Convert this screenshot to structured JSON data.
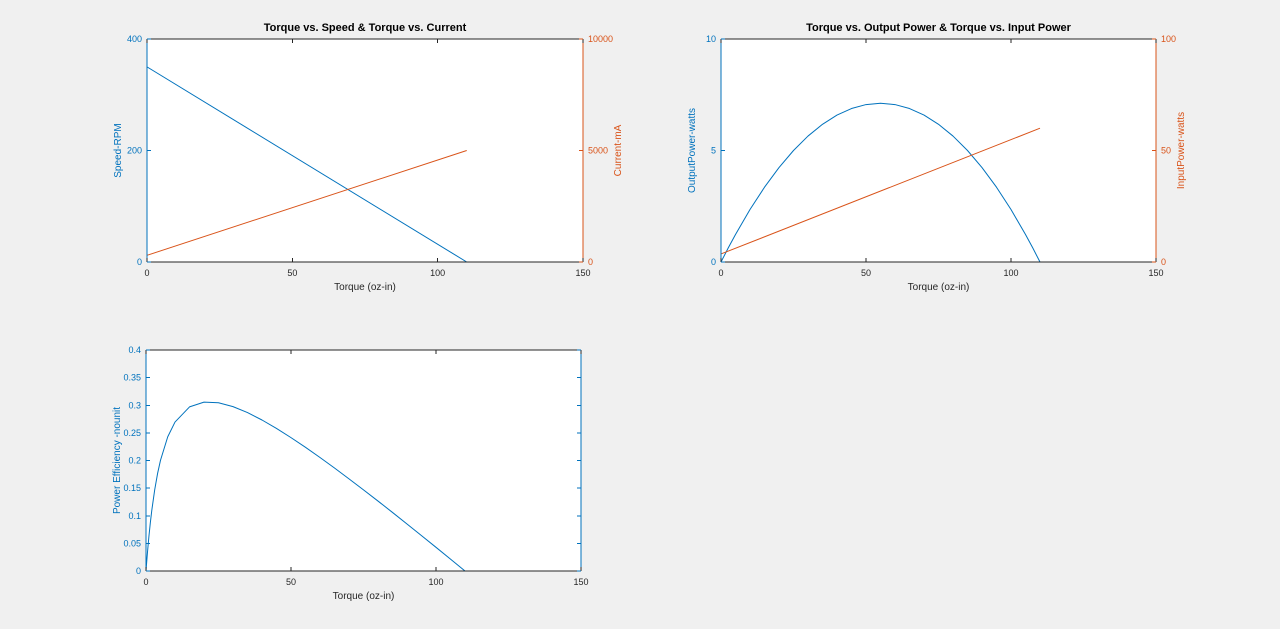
{
  "figure": {
    "background": "#F0F0F0",
    "plot_background": "#FFFFFF",
    "axis_color": "#262626",
    "title_color": "#000000",
    "palette": {
      "blue": "#0072BD",
      "orange": "#D95319"
    }
  },
  "chart_data": [
    {
      "type": "line",
      "title": "Torque vs. Speed & Torque vs. Current",
      "xlabel": "Torque (oz-in)",
      "xlim": [
        0,
        150
      ],
      "x_ticks": [
        0,
        50,
        100,
        150
      ],
      "grid": false,
      "legend": null,
      "left_axis": {
        "label": "Speed-RPM",
        "color": "#0072BD",
        "lim": [
          0,
          400
        ],
        "ticks": [
          0,
          200,
          400
        ],
        "show_labels": true
      },
      "right_axis": {
        "label": "Current-mA",
        "color": "#D95319",
        "lim": [
          0,
          10000
        ],
        "ticks": [
          0,
          5000,
          10000
        ],
        "show_labels": true
      },
      "series": [
        {
          "name": "speed-vs-torque",
          "axis": "left",
          "color": "#0072BD",
          "x": [
            0,
            110
          ],
          "y": [
            350,
            0
          ]
        },
        {
          "name": "current-vs-torque",
          "axis": "right",
          "color": "#D95319",
          "x": [
            0,
            110
          ],
          "y": [
            300,
            5000
          ]
        }
      ]
    },
    {
      "type": "line",
      "title": "Torque vs. Output Power & Torque vs. Input Power",
      "xlabel": "Torque (oz-in)",
      "xlim": [
        0,
        150
      ],
      "x_ticks": [
        0,
        50,
        100,
        150
      ],
      "grid": false,
      "legend": null,
      "left_axis": {
        "label": "OutputPower-watts",
        "color": "#0072BD",
        "lim": [
          0,
          10
        ],
        "ticks": [
          0,
          5,
          10
        ],
        "show_labels": true
      },
      "right_axis": {
        "label": "InputPower-watts",
        "color": "#D95319",
        "lim": [
          0,
          100
        ],
        "ticks": [
          0,
          50,
          100
        ],
        "show_labels": true
      },
      "series": [
        {
          "name": "output-power-vs-torque",
          "axis": "left",
          "color": "#0072BD",
          "x": [
            0,
            2.5,
            5,
            10,
            15,
            20,
            25,
            30,
            35,
            40,
            45,
            50,
            55,
            60,
            65,
            70,
            75,
            80,
            85,
            90,
            95,
            100,
            105,
            107.5,
            110
          ],
          "y": [
            0,
            0.632,
            1.235,
            2.353,
            3.353,
            4.235,
            5.0,
            5.647,
            6.176,
            6.588,
            6.882,
            7.059,
            7.118,
            7.059,
            6.882,
            6.588,
            6.176,
            5.647,
            5.0,
            4.235,
            3.353,
            2.353,
            1.235,
            0.632,
            0
          ]
        },
        {
          "name": "input-power-vs-torque",
          "axis": "right",
          "color": "#D95319",
          "x": [
            0,
            110
          ],
          "y": [
            3.6,
            60
          ]
        }
      ]
    },
    {
      "type": "line",
      "title": "",
      "xlabel": "Torque (oz-in)",
      "xlim": [
        0,
        150
      ],
      "x_ticks": [
        0,
        50,
        100,
        150
      ],
      "grid": false,
      "legend": null,
      "left_axis": {
        "label": "Power Efficiency -nounit",
        "color": "#0072BD",
        "lim": [
          0,
          0.4
        ],
        "ticks": [
          0,
          0.05,
          0.1,
          0.15,
          0.2,
          0.25,
          0.3,
          0.35,
          0.4
        ],
        "show_labels": true
      },
      "right_axis": {
        "label": "",
        "color": "#0072BD",
        "lim": [
          0,
          0.4
        ],
        "ticks": [
          0,
          0.05,
          0.1,
          0.15,
          0.2,
          0.25,
          0.3,
          0.35,
          0.4
        ],
        "show_labels": false
      },
      "series": [
        {
          "name": "efficiency-vs-torque",
          "axis": "left",
          "color": "#0072BD",
          "x": [
            0,
            0.25,
            0.5,
            1,
            1.5,
            2,
            3,
            4,
            5,
            7.5,
            10,
            15,
            20,
            25,
            30,
            35,
            40,
            45,
            50,
            55,
            60,
            65,
            70,
            75,
            80,
            85,
            90,
            95,
            100,
            105,
            110
          ],
          "y": [
            0,
            0.0173,
            0.0334,
            0.0624,
            0.0876,
            0.1099,
            0.147,
            0.1767,
            0.2004,
            0.243,
            0.2696,
            0.297,
            0.3057,
            0.3045,
            0.2975,
            0.2867,
            0.2733,
            0.258,
            0.2414,
            0.2238,
            0.2054,
            0.1864,
            0.1668,
            0.1469,
            0.1266,
            0.106,
            0.0851,
            0.0641,
            0.0429,
            0.0215,
            0
          ]
        }
      ]
    }
  ]
}
